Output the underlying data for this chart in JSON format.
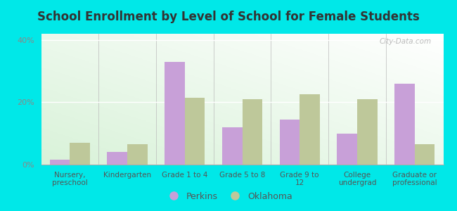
{
  "title": "School Enrollment by Level of School for Female Students",
  "categories": [
    "Nursery,\npreschool",
    "Kindergarten",
    "Grade 1 to 4",
    "Grade 5 to 8",
    "Grade 9 to\n12",
    "College\nundergrad",
    "Graduate or\nprofessional"
  ],
  "perkins": [
    1.5,
    4.0,
    33.0,
    12.0,
    14.5,
    10.0,
    26.0
  ],
  "oklahoma": [
    7.0,
    6.5,
    21.5,
    21.0,
    22.5,
    21.0,
    6.5
  ],
  "perkins_color": "#c8a0d8",
  "oklahoma_color": "#bec89a",
  "background_color": "#00e8e8",
  "ylim": [
    0,
    42
  ],
  "yticks": [
    0,
    20,
    40
  ],
  "ytick_labels": [
    "0%",
    "20%",
    "40%"
  ],
  "bar_width": 0.35,
  "legend_labels": [
    "Perkins",
    "Oklahoma"
  ],
  "watermark": "City-Data.com"
}
